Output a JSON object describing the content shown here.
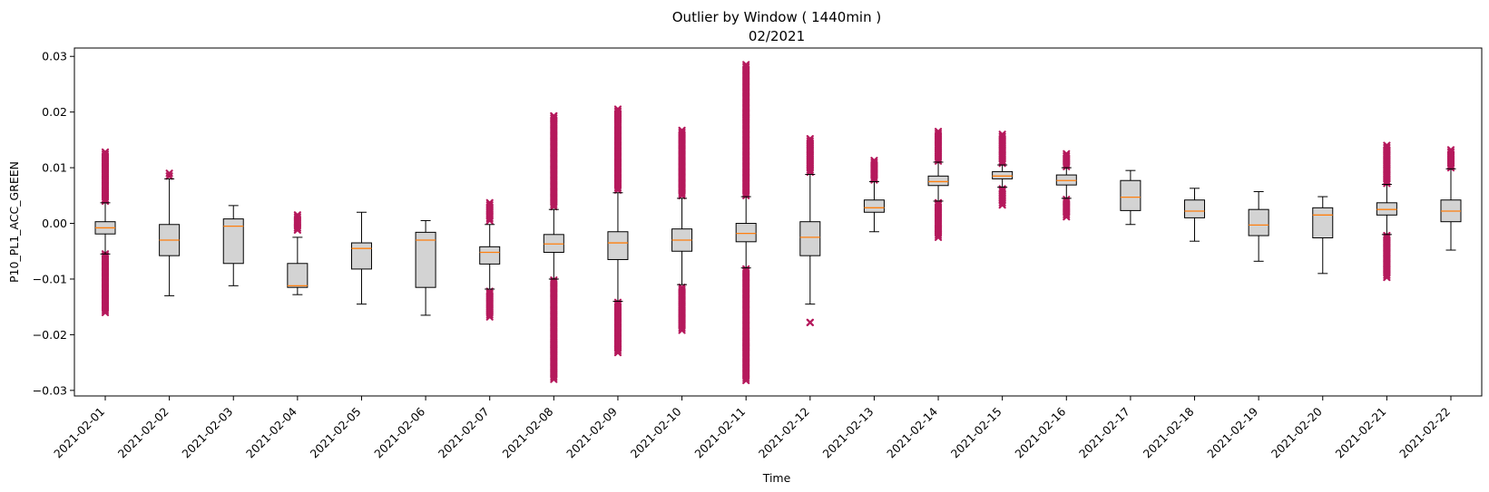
{
  "chart_data": {
    "type": "box",
    "title": "Outlier by Window ( 1440min )",
    "subtitle": "02/2021",
    "xlabel": "Time",
    "ylabel": "P10_PL1_ACC_GREEN",
    "ylim": [
      -0.031,
      0.0315
    ],
    "yticks": [
      -0.03,
      -0.02,
      -0.01,
      0.0,
      0.01,
      0.02,
      0.03
    ],
    "ytick_labels": [
      "−0.03",
      "−0.02",
      "−0.01",
      "0.00",
      "0.01",
      "0.02",
      "0.03"
    ],
    "grid": false,
    "colors": {
      "box_fill": "#d3d3d3",
      "box_edge": "#000000",
      "median": "#ff7f0e",
      "outlier": "#b5195c"
    },
    "categories": [
      "2021-02-01",
      "2021-02-02",
      "2021-02-03",
      "2021-02-04",
      "2021-02-05",
      "2021-02-06",
      "2021-02-07",
      "2021-02-08",
      "2021-02-09",
      "2021-02-10",
      "2021-02-11",
      "2021-02-12",
      "2021-02-13",
      "2021-02-14",
      "2021-02-15",
      "2021-02-16",
      "2021-02-17",
      "2021-02-18",
      "2021-02-19",
      "2021-02-20",
      "2021-02-21",
      "2021-02-22"
    ],
    "boxes": [
      {
        "wlo": -0.0055,
        "q1": -0.0019,
        "med": -0.0008,
        "q3": 0.0003,
        "whi": 0.0037,
        "out_lo": [
          -0.016,
          -0.0055
        ],
        "out_hi": [
          0.004,
          0.0128
        ]
      },
      {
        "wlo": -0.013,
        "q1": -0.0058,
        "med": -0.003,
        "q3": -0.0002,
        "whi": 0.008,
        "out_lo": [],
        "out_hi": [
          0.0085,
          0.009
        ]
      },
      {
        "wlo": -0.0112,
        "q1": -0.0072,
        "med": -0.0005,
        "q3": 0.0008,
        "whi": 0.0032,
        "out_lo": [],
        "out_hi": []
      },
      {
        "wlo": -0.0128,
        "q1": -0.0115,
        "med": -0.0112,
        "q3": -0.0072,
        "whi": -0.0025,
        "out_lo": [],
        "out_hi": [
          -0.0012,
          0.0015
        ]
      },
      {
        "wlo": -0.0145,
        "q1": -0.0082,
        "med": -0.0045,
        "q3": -0.0035,
        "whi": 0.002,
        "out_lo": [],
        "out_hi": []
      },
      {
        "wlo": -0.0165,
        "q1": -0.0115,
        "med": -0.003,
        "q3": -0.0016,
        "whi": 0.0005,
        "out_lo": [],
        "out_hi": []
      },
      {
        "wlo": -0.0118,
        "q1": -0.0073,
        "med": -0.0052,
        "q3": -0.0042,
        "whi": -0.0002,
        "out_lo": [
          -0.0168,
          -0.0122
        ],
        "out_hi": [
          0.0005,
          0.0037
        ]
      },
      {
        "wlo": -0.01,
        "q1": -0.0052,
        "med": -0.0037,
        "q3": -0.002,
        "whi": 0.0025,
        "out_lo": [
          -0.028,
          -0.0102
        ],
        "out_hi": [
          0.003,
          0.0193
        ]
      },
      {
        "wlo": -0.014,
        "q1": -0.0065,
        "med": -0.0035,
        "q3": -0.0015,
        "whi": 0.0055,
        "out_lo": [
          -0.0232,
          -0.0142
        ],
        "out_hi": [
          0.006,
          0.0205
        ]
      },
      {
        "wlo": -0.011,
        "q1": -0.005,
        "med": -0.003,
        "q3": -0.001,
        "whi": 0.0045,
        "out_lo": [
          -0.0192,
          -0.0115
        ],
        "out_hi": [
          0.005,
          0.0167
        ]
      },
      {
        "wlo": -0.008,
        "q1": -0.0033,
        "med": -0.0018,
        "q3": 0.0,
        "whi": 0.0048,
        "out_lo": [
          -0.0282,
          -0.0082
        ],
        "out_hi": [
          0.005,
          0.0285
        ]
      },
      {
        "wlo": -0.0145,
        "q1": -0.0058,
        "med": -0.0025,
        "q3": 0.0003,
        "whi": 0.0088,
        "out_lo": [
          -0.0178,
          -0.0178
        ],
        "out_hi": [
          0.0092,
          0.0152
        ]
      },
      {
        "wlo": -0.0015,
        "q1": 0.002,
        "med": 0.0028,
        "q3": 0.0042,
        "whi": 0.0075,
        "out_lo": [],
        "out_hi": [
          0.0078,
          0.0113
        ]
      },
      {
        "wlo": 0.004,
        "q1": 0.0068,
        "med": 0.0075,
        "q3": 0.0085,
        "whi": 0.011,
        "out_lo": [
          -0.0025,
          0.0037
        ],
        "out_hi": [
          0.0112,
          0.0165
        ]
      },
      {
        "wlo": 0.0065,
        "q1": 0.008,
        "med": 0.0085,
        "q3": 0.0093,
        "whi": 0.0105,
        "out_lo": [
          0.0033,
          0.0062
        ],
        "out_hi": [
          0.0108,
          0.016
        ]
      },
      {
        "wlo": 0.0045,
        "q1": 0.0069,
        "med": 0.0077,
        "q3": 0.0087,
        "whi": 0.01,
        "out_lo": [
          0.0012,
          0.0043
        ],
        "out_hi": [
          0.0102,
          0.0125
        ]
      },
      {
        "wlo": -0.0002,
        "q1": 0.0023,
        "med": 0.0047,
        "q3": 0.0077,
        "whi": 0.0095,
        "out_lo": [],
        "out_hi": []
      },
      {
        "wlo": -0.0032,
        "q1": 0.001,
        "med": 0.0022,
        "q3": 0.0042,
        "whi": 0.0063,
        "out_lo": [],
        "out_hi": []
      },
      {
        "wlo": -0.0068,
        "q1": -0.0022,
        "med": -0.0003,
        "q3": 0.0025,
        "whi": 0.0057,
        "out_lo": [],
        "out_hi": []
      },
      {
        "wlo": -0.009,
        "q1": -0.0026,
        "med": 0.0015,
        "q3": 0.0028,
        "whi": 0.0048,
        "out_lo": [],
        "out_hi": []
      },
      {
        "wlo": -0.002,
        "q1": 0.0015,
        "med": 0.0025,
        "q3": 0.0037,
        "whi": 0.007,
        "out_lo": [
          -0.0097,
          -0.0022
        ],
        "out_hi": [
          0.0072,
          0.014
        ]
      },
      {
        "wlo": -0.0048,
        "q1": 0.0003,
        "med": 0.0022,
        "q3": 0.0042,
        "whi": 0.0098,
        "out_lo": [],
        "out_hi": [
          0.01,
          0.0132
        ]
      }
    ]
  }
}
